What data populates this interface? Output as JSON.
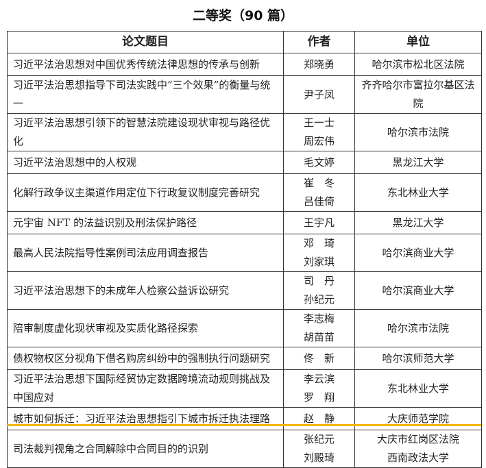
{
  "title": "二等奖（90 篇）",
  "headers": {
    "title": "论文题目",
    "author": "作者",
    "unit": "单位"
  },
  "highlight_color": "#f5b400",
  "rows": [
    {
      "title": "习近平法治思想对中国优秀传统法律思想的传承与创新",
      "authors": [
        "郑晓勇"
      ],
      "units": [
        "哈尔滨市松北区法院"
      ]
    },
    {
      "title": "习近平法治思想指导下司法实践中“三个效果”的衡量与统一",
      "authors": [
        "尹子凤"
      ],
      "units": [
        "齐齐哈尔市富拉尔基区法院"
      ]
    },
    {
      "title": "习近平法治思想引领下的智慧法院建设现状审视与路径优化",
      "authors": [
        "王一士",
        "周宏伟"
      ],
      "units": [
        "哈尔滨市法院"
      ]
    },
    {
      "title": "习近平法治思想中的人权观",
      "authors": [
        "毛文婷"
      ],
      "units": [
        "黑龙江大学"
      ]
    },
    {
      "title": "化解行政争议主渠道作用定位下行政复议制度完善研究",
      "authors": [
        "崔　冬",
        "吕佳倚"
      ],
      "units": [
        "东北林业大学"
      ]
    },
    {
      "title": "元宇宙 NFT 的法益识别及刑法保护路径",
      "authors": [
        "王宇凡"
      ],
      "units": [
        "黑龙江大学"
      ]
    },
    {
      "title": "最高人民法院指导性案例司法应用调查报告",
      "authors": [
        "邓　琦",
        "刘家琪"
      ],
      "units": [
        "哈尔滨商业大学"
      ]
    },
    {
      "title": "习近平法治思想下的未成年人检察公益诉讼研究",
      "authors": [
        "司　丹",
        "孙纪元"
      ],
      "units": [
        "哈尔滨商业大学"
      ]
    },
    {
      "title": "陪审制度虚化现状审视及实质化路径探索",
      "authors": [
        "李志梅",
        "胡苗苗"
      ],
      "units": [
        "哈尔滨市法院"
      ]
    },
    {
      "title": "债权物权区分视角下借名购房纠纷中的强制执行问题研究",
      "authors": [
        "佟　新"
      ],
      "units": [
        "哈尔滨师范大学"
      ]
    },
    {
      "title": "习近平法治思想下国际经贸协定数据跨境流动规则挑战及中国应对",
      "authors": [
        "李云滨",
        "罗　翔"
      ],
      "units": [
        "东北林业大学"
      ]
    },
    {
      "title": "城市如何拆迁：习近平法治思想指引下城市拆迁执法理路",
      "authors": [
        "赵　静"
      ],
      "units": [
        "大庆师范学院"
      ]
    },
    {
      "title": "司法裁判视角之合同解除中合同目的的识别",
      "authors": [
        "张纪元",
        "刘殿琦"
      ],
      "units": [
        "大庆市红岗区法院",
        "西南政法大学"
      ]
    }
  ]
}
